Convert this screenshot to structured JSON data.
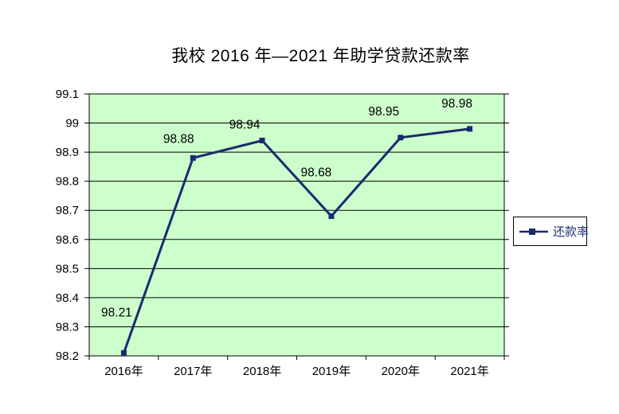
{
  "chart_data": {
    "type": "line",
    "title": "我校 2016 年—2021 年助学贷款还款率",
    "categories": [
      "2016年",
      "2017年",
      "2018年",
      "2019年",
      "2020年",
      "2021年"
    ],
    "series": [
      {
        "name": "还款率",
        "values": [
          98.21,
          98.88,
          98.94,
          98.68,
          98.95,
          98.98
        ],
        "point_labels": [
          "98.21",
          "98.88",
          "98.94",
          "98.68",
          "98.95",
          "98.98"
        ],
        "color": "#1a2a6e",
        "marker": "square"
      }
    ],
    "y_axis": {
      "min": 98.2,
      "max": 99.1,
      "step": 0.1,
      "tick_labels": [
        "99.1",
        "99",
        "98.9",
        "98.8",
        "98.7",
        "98.6",
        "98.5",
        "98.4",
        "98.3",
        "98.2"
      ]
    },
    "legend": {
      "label": "还款率",
      "position": "right",
      "text_color": "#1f3070"
    },
    "plot_background": "#ccffcc",
    "grid": "horizontal",
    "axis_color": "#000000",
    "label_color": "#000000"
  }
}
